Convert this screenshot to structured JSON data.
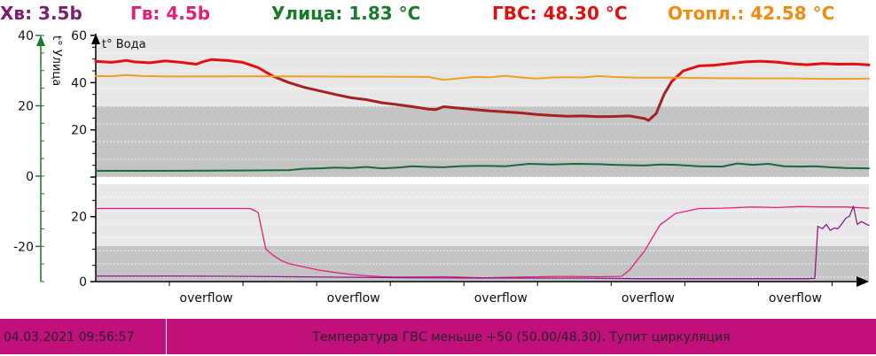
{
  "header": {
    "cold_water": {
      "text": "Хв: 3.5b",
      "color": "#7a1f6e"
    },
    "hot_water": {
      "text": "Гв: 4.5b",
      "color": "#e0207a"
    },
    "street": {
      "text": "Улица: 1.83 °C",
      "color": "#1a7a2a"
    },
    "gvs": {
      "text": "ГВС: 48.30 °C",
      "color": "#e01010"
    },
    "heating": {
      "text": "Отопл.: 42.58 °C",
      "color": "#f08a10"
    }
  },
  "status": {
    "timestamp": "04.03.2021 09:56:57",
    "message": "Температура ГВС меньше +50 (50.00/48.30). Тупит циркуляция"
  },
  "chart_data": {
    "type": "line",
    "x_tick_labels": [
      "overflow",
      "overflow",
      "overflow",
      "overflow",
      "overflow"
    ],
    "x_range": [
      0,
      100
    ],
    "panels": [
      {
        "name": "temperature",
        "axes": [
          {
            "id": "street",
            "label": "t° Улица",
            "ticks": [
              -20,
              0,
              20,
              40
            ],
            "range": [
              -30,
              40
            ],
            "color": "#1a7a2a"
          },
          {
            "id": "water",
            "label": "t° Вода",
            "ticks": [
              0,
              20,
              40,
              60
            ],
            "range": [
              0,
              60
            ],
            "color": "#000000"
          }
        ],
        "series": [
          {
            "id": "gvs",
            "axis": "water",
            "color": "#e01010",
            "points": [
              [
                0,
                49
              ],
              [
                2,
                48.6
              ],
              [
                4,
                49.4
              ],
              [
                5,
                48.8
              ],
              [
                7,
                48.4
              ],
              [
                9,
                49.2
              ],
              [
                11,
                48.6
              ],
              [
                13,
                47.8
              ],
              [
                14,
                49
              ],
              [
                15,
                49.8
              ],
              [
                17,
                49.4
              ],
              [
                19,
                48.6
              ],
              [
                21,
                46.4
              ],
              [
                23,
                42.6
              ]
            ]
          },
          {
            "id": "gvs-decline",
            "axis": "water",
            "color": "#a52020",
            "points": [
              [
                23,
                42.6
              ],
              [
                25,
                40
              ],
              [
                27,
                38
              ],
              [
                29,
                36.5
              ],
              [
                31,
                35
              ],
              [
                33,
                33.6
              ],
              [
                35,
                32.8
              ],
              [
                37,
                31.5
              ],
              [
                39,
                30.7
              ],
              [
                41,
                29.8
              ],
              [
                43,
                28.8
              ],
              [
                44,
                28.6
              ],
              [
                45,
                29.8
              ],
              [
                47,
                29.2
              ],
              [
                49,
                28.6
              ],
              [
                51,
                28
              ],
              [
                53,
                27.6
              ],
              [
                55,
                27.2
              ],
              [
                57,
                26.5
              ],
              [
                59,
                26.1
              ],
              [
                61,
                25.8
              ],
              [
                63,
                25.9
              ],
              [
                65,
                25.6
              ],
              [
                67,
                25.7
              ],
              [
                69,
                25.9
              ],
              [
                71,
                24.8
              ],
              [
                71.5,
                24
              ],
              [
                72.5,
                27
              ],
              [
                73.5,
                35
              ],
              [
                74.5,
                40.5
              ]
            ]
          },
          {
            "id": "gvs-recovery",
            "axis": "water",
            "color": "#e01010",
            "points": [
              [
                74.5,
                40.5
              ],
              [
                76,
                45
              ],
              [
                78,
                47.1
              ],
              [
                80,
                47.4
              ],
              [
                82,
                48.1
              ],
              [
                84,
                48.8
              ],
              [
                86,
                49.1
              ],
              [
                88,
                48.7
              ],
              [
                90,
                48
              ],
              [
                92,
                47.6
              ],
              [
                94,
                48.1
              ],
              [
                96,
                47.8
              ],
              [
                98,
                47.9
              ],
              [
                100,
                47.5
              ]
            ]
          },
          {
            "id": "heating",
            "axis": "water",
            "color": "#f0a020",
            "points": [
              [
                0,
                42.8
              ],
              [
                2,
                42.7
              ],
              [
                4,
                43.2
              ],
              [
                6,
                42.8
              ],
              [
                10,
                42.6
              ],
              [
                20,
                42.7
              ],
              [
                30,
                42.6
              ],
              [
                40,
                42.5
              ],
              [
                43,
                42.4
              ],
              [
                45,
                41.2
              ],
              [
                47,
                41.8
              ],
              [
                49,
                42.4
              ],
              [
                51,
                42.3
              ],
              [
                53,
                42.9
              ],
              [
                55,
                42.2
              ],
              [
                57,
                41.7
              ],
              [
                59,
                42.2
              ],
              [
                61,
                42.3
              ],
              [
                63,
                42.2
              ],
              [
                65,
                42.8
              ],
              [
                67,
                42.4
              ],
              [
                70,
                42.1
              ],
              [
                75,
                42.1
              ],
              [
                80,
                41.9
              ],
              [
                85,
                41.8
              ],
              [
                90,
                41.8
              ],
              [
                95,
                41.6
              ],
              [
                100,
                41.7
              ]
            ]
          },
          {
            "id": "street",
            "axis": "street",
            "color": "#1a6a3a",
            "points": [
              [
                0,
                1.5
              ],
              [
                10,
                1.5
              ],
              [
                20,
                1.6
              ],
              [
                25,
                1.7
              ],
              [
                27,
                2.1
              ],
              [
                29,
                2.2
              ],
              [
                31,
                2.4
              ],
              [
                33,
                2.3
              ],
              [
                35,
                2.6
              ],
              [
                37,
                2.2
              ],
              [
                39,
                2.4
              ],
              [
                41,
                2.8
              ],
              [
                43,
                2.6
              ],
              [
                45,
                2.5
              ],
              [
                47,
                2.8
              ],
              [
                50,
                2.9
              ],
              [
                53,
                2.8
              ],
              [
                56,
                3.5
              ],
              [
                59,
                3.3
              ],
              [
                62,
                3.5
              ],
              [
                65,
                3.4
              ],
              [
                67,
                3.2
              ],
              [
                69,
                3.1
              ],
              [
                71,
                3
              ],
              [
                73,
                3.3
              ],
              [
                75,
                3.2
              ],
              [
                78,
                2.8
              ],
              [
                81,
                2.7
              ],
              [
                83,
                3.6
              ],
              [
                85,
                3.2
              ],
              [
                87,
                3.5
              ],
              [
                89,
                2.8
              ],
              [
                91,
                2.7
              ],
              [
                93,
                2.8
              ],
              [
                95,
                2.5
              ],
              [
                97,
                2.3
              ],
              [
                100,
                2.2
              ]
            ]
          }
        ]
      },
      {
        "name": "pressure",
        "axes": [
          {
            "id": "pressure",
            "label": "",
            "ticks": [
              0,
              20
            ],
            "range": [
              0,
              30
            ],
            "color": "#000000"
          }
        ],
        "series": [
          {
            "id": "hot-water-pressure",
            "axis": "pressure",
            "color": "#e0207a",
            "points": [
              [
                0,
                22.5
              ],
              [
                10,
                22.5
              ],
              [
                20,
                22.5
              ],
              [
                21,
                21.3
              ],
              [
                22,
                10
              ],
              [
                23,
                8
              ],
              [
                24,
                6.5
              ],
              [
                25,
                5.5
              ],
              [
                27,
                4.5
              ],
              [
                29,
                3.5
              ],
              [
                31,
                2.8
              ],
              [
                33,
                2.2
              ],
              [
                35,
                1.8
              ],
              [
                37,
                1.5
              ],
              [
                39,
                1.4
              ],
              [
                45,
                1.5
              ],
              [
                50,
                1.2
              ],
              [
                55,
                1.4
              ],
              [
                60,
                1.6
              ],
              [
                65,
                1.5
              ],
              [
                68,
                1.6
              ],
              [
                69,
                3.5
              ],
              [
                70,
                6.5
              ],
              [
                71,
                9.5
              ],
              [
                72,
                13.5
              ],
              [
                73,
                17.5
              ],
              [
                75,
                21
              ],
              [
                78,
                22.5
              ],
              [
                81,
                22.6
              ],
              [
                85,
                23
              ],
              [
                88,
                22.8
              ],
              [
                91,
                23.1
              ],
              [
                94,
                23
              ],
              [
                97,
                23
              ],
              [
                100,
                22.6
              ]
            ]
          },
          {
            "id": "cold-water-pressure",
            "axis": "pressure",
            "color": "#8a1c8a",
            "points": [
              [
                0,
                1.7
              ],
              [
                10,
                1.7
              ],
              [
                20,
                1.6
              ],
              [
                30,
                1.4
              ],
              [
                40,
                1.2
              ],
              [
                48,
                1.1
              ],
              [
                55,
                1.1
              ],
              [
                63,
                1.1
              ],
              [
                70,
                0.9
              ],
              [
                80,
                0.9
              ],
              [
                92,
                0.9
              ],
              [
                93,
                1
              ],
              [
                93.4,
                17
              ],
              [
                94,
                16.3
              ],
              [
                94.5,
                17.6
              ],
              [
                95,
                15.8
              ],
              [
                95.5,
                16.5
              ],
              [
                96,
                16.3
              ],
              [
                96.5,
                17.8
              ],
              [
                97,
                19.5
              ],
              [
                97.5,
                20.2
              ],
              [
                98,
                23.2
              ],
              [
                98.5,
                17.6
              ],
              [
                99,
                18.5
              ],
              [
                100,
                17.3
              ]
            ]
          }
        ]
      }
    ],
    "grid": true
  }
}
